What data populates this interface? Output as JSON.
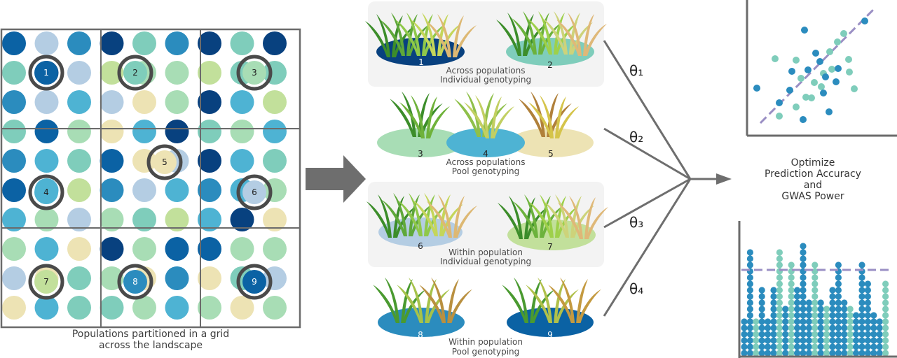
{
  "colors": {
    "palette": [
      "#0b62a4",
      "#2b8cbe",
      "#4eb3d3",
      "#7fcdbb",
      "#a8ddb5",
      "#c2e09b",
      "#ede3b4",
      "#b4cde3",
      "#08417f"
    ],
    "gray": "#6b6b6b",
    "dashed_line": "#9a8fc4"
  },
  "grid": {
    "caption_line1": "Populations partitioned in a grid",
    "caption_line2": "across the landscape",
    "selected_labels": [
      "1",
      "2",
      "3",
      "4",
      "5",
      "6",
      "7",
      "8",
      "9"
    ]
  },
  "strategies": [
    {
      "caption_line1": "Across populations",
      "caption_line2": "Individual genotyping",
      "population_labels": [
        "1",
        "2"
      ]
    },
    {
      "caption_line1": "Across populations",
      "caption_line2": "Pool genotyping",
      "population_labels": [
        "3",
        "4",
        "5"
      ]
    },
    {
      "caption_line1": "Within population",
      "caption_line2": "Individual genotyping",
      "population_labels": [
        "6",
        "7"
      ]
    },
    {
      "caption_line1": "Within population",
      "caption_line2": "Pool genotyping",
      "population_labels": [
        "8",
        "9"
      ]
    }
  ],
  "thetas": [
    "θ₁",
    "θ₂",
    "θ₃",
    "θ₄"
  ],
  "outcome": {
    "line1": "Optimize",
    "line2": "Prediction Accuracy",
    "line3": "and",
    "line4": "GWAS Power"
  }
}
